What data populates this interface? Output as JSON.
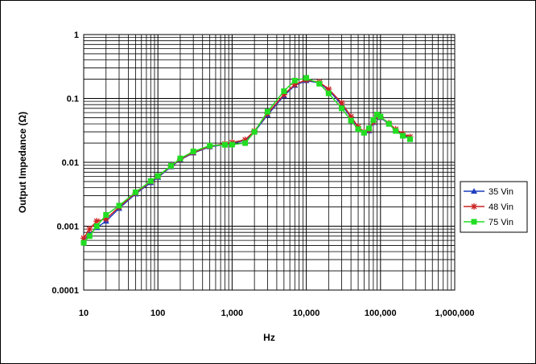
{
  "chart_data": {
    "type": "line",
    "title": "",
    "xlabel": "Hz",
    "ylabel": "Output  Impedance (Ω)",
    "x_scale": "log",
    "y_scale": "log",
    "xlim": [
      10,
      1000000
    ],
    "ylim": [
      0.0001,
      1
    ],
    "x_tick_labels": [
      "10",
      "100",
      "1,000",
      "10,000",
      "100,000",
      "1,000,000"
    ],
    "y_tick_labels": [
      "1",
      "0.1",
      "0.01",
      "0.001",
      "0.0001"
    ],
    "grid": true,
    "legend_position": "right",
    "series": [
      {
        "name": "35 Vin",
        "color": "#1f3fbf",
        "marker": "triangle",
        "x": [
          10,
          12,
          15,
          20,
          30,
          50,
          80,
          100,
          150,
          200,
          300,
          500,
          800,
          1000,
          1500,
          2000,
          3000,
          5000,
          7000,
          10000,
          15000,
          20000,
          30000,
          40000,
          50000,
          60000,
          70000,
          80000,
          90000,
          100000,
          130000,
          160000,
          200000,
          250000
        ],
        "y": [
          0.0006,
          0.00075,
          0.00095,
          0.0012,
          0.0019,
          0.0032,
          0.0048,
          0.0058,
          0.0085,
          0.011,
          0.014,
          0.0175,
          0.019,
          0.02,
          0.022,
          0.03,
          0.055,
          0.11,
          0.16,
          0.19,
          0.175,
          0.135,
          0.08,
          0.05,
          0.035,
          0.029,
          0.031,
          0.042,
          0.052,
          0.05,
          0.04,
          0.032,
          0.027,
          0.024
        ]
      },
      {
        "name": "48 Vin",
        "color": "#cc2222",
        "marker": "star",
        "x": [
          10,
          12,
          15,
          20,
          30,
          50,
          80,
          100,
          150,
          200,
          300,
          500,
          800,
          1000,
          1500,
          2000,
          3000,
          5000,
          7000,
          10000,
          15000,
          20000,
          30000,
          40000,
          50000,
          60000,
          70000,
          80000,
          90000,
          100000,
          130000,
          160000,
          200000,
          250000
        ],
        "y": [
          0.00065,
          0.0009,
          0.0012,
          0.0013,
          0.002,
          0.0033,
          0.005,
          0.006,
          0.0087,
          0.0112,
          0.0143,
          0.0178,
          0.0195,
          0.0205,
          0.0225,
          0.031,
          0.058,
          0.115,
          0.165,
          0.195,
          0.18,
          0.14,
          0.085,
          0.052,
          0.036,
          0.03,
          0.032,
          0.043,
          0.054,
          0.051,
          0.041,
          0.033,
          0.028,
          0.025
        ]
      },
      {
        "name": "75 Vin",
        "color": "#22dd22",
        "marker": "square",
        "x": [
          10,
          12,
          15,
          20,
          30,
          50,
          80,
          100,
          150,
          200,
          300,
          500,
          800,
          1000,
          1500,
          2000,
          3000,
          5000,
          7000,
          10000,
          15000,
          20000,
          30000,
          40000,
          50000,
          60000,
          70000,
          80000,
          90000,
          100000,
          130000,
          160000,
          200000,
          250000
        ],
        "y": [
          0.00055,
          0.0007,
          0.001,
          0.0015,
          0.0021,
          0.0034,
          0.0051,
          0.0061,
          0.0088,
          0.0115,
          0.0148,
          0.0182,
          0.0188,
          0.0189,
          0.02,
          0.03,
          0.062,
          0.13,
          0.19,
          0.21,
          0.17,
          0.12,
          0.07,
          0.045,
          0.033,
          0.029,
          0.034,
          0.046,
          0.056,
          0.052,
          0.04,
          0.031,
          0.026,
          0.023
        ]
      }
    ]
  }
}
